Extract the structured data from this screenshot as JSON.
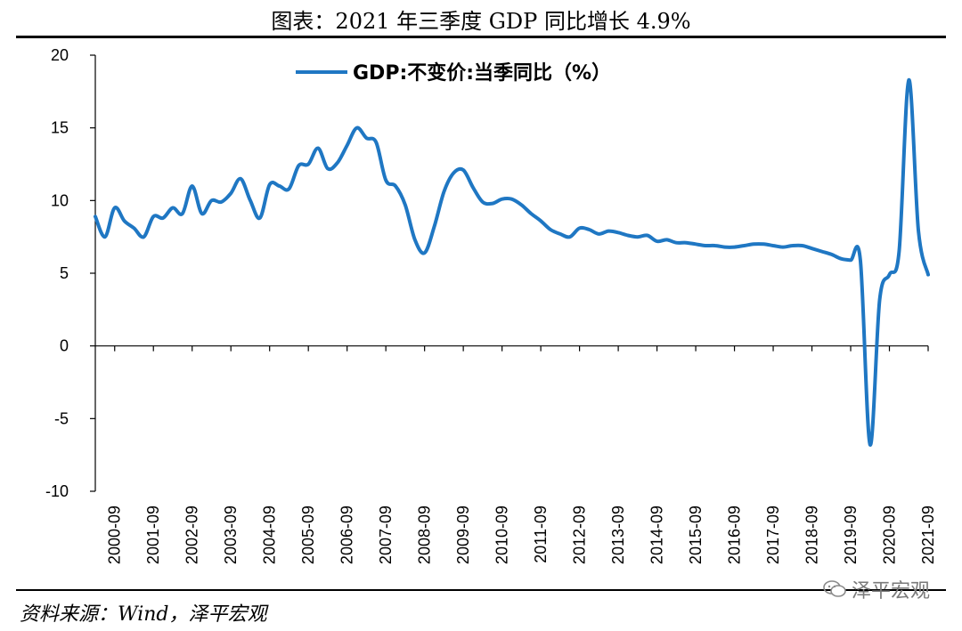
{
  "title": "图表：2021 年三季度 GDP 同比增长 4.9%",
  "source": "资料来源：Wind，泽平宏观",
  "watermark": "泽平宏观",
  "colors": {
    "series": "#1f77c3",
    "axis": "#000000",
    "text": "#000000"
  },
  "chart_data": {
    "type": "line",
    "title": "图表：2021 年三季度 GDP 同比增长 4.9%",
    "xlabel": "",
    "ylabel": "",
    "ylim": [
      -10,
      20
    ],
    "yticks": [
      20,
      15,
      10,
      5,
      0,
      -5,
      -10
    ],
    "ytick_labels": [
      "20",
      "15",
      "10",
      "5",
      "0",
      "-5",
      "-10"
    ],
    "xtick_labels": [
      "2000-09",
      "2001-09",
      "2002-09",
      "2003-09",
      "2004-09",
      "2005-09",
      "2006-09",
      "2007-09",
      "2008-09",
      "2009-09",
      "2010-09",
      "2011-09",
      "2012-09",
      "2013-09",
      "2014-09",
      "2015-09",
      "2016-09",
      "2017-09",
      "2018-09",
      "2019-09",
      "2020-09",
      "2021-09"
    ],
    "grid": false,
    "legend_position": "top",
    "x": [
      "2000-03",
      "2000-06",
      "2000-09",
      "2000-12",
      "2001-03",
      "2001-06",
      "2001-09",
      "2001-12",
      "2002-03",
      "2002-06",
      "2002-09",
      "2002-12",
      "2003-03",
      "2003-06",
      "2003-09",
      "2003-12",
      "2004-03",
      "2004-06",
      "2004-09",
      "2004-12",
      "2005-03",
      "2005-06",
      "2005-09",
      "2005-12",
      "2006-03",
      "2006-06",
      "2006-09",
      "2006-12",
      "2007-03",
      "2007-06",
      "2007-09",
      "2007-12",
      "2008-03",
      "2008-06",
      "2008-09",
      "2008-12",
      "2009-03",
      "2009-06",
      "2009-09",
      "2009-12",
      "2010-03",
      "2010-06",
      "2010-09",
      "2010-12",
      "2011-03",
      "2011-06",
      "2011-09",
      "2011-12",
      "2012-03",
      "2012-06",
      "2012-09",
      "2012-12",
      "2013-03",
      "2013-06",
      "2013-09",
      "2013-12",
      "2014-03",
      "2014-06",
      "2014-09",
      "2014-12",
      "2015-03",
      "2015-06",
      "2015-09",
      "2015-12",
      "2016-03",
      "2016-06",
      "2016-09",
      "2016-12",
      "2017-03",
      "2017-06",
      "2017-09",
      "2017-12",
      "2018-03",
      "2018-06",
      "2018-09",
      "2018-12",
      "2019-03",
      "2019-06",
      "2019-09",
      "2019-12",
      "2020-03",
      "2020-06",
      "2020-09",
      "2020-12",
      "2021-03",
      "2021-06",
      "2021-09"
    ],
    "series": [
      {
        "name": "GDP:不变价:当季同比（%）",
        "color": "#1f77c3",
        "values": [
          8.9,
          7.5,
          9.5,
          8.6,
          8.1,
          7.5,
          8.9,
          8.8,
          9.5,
          9.1,
          11.0,
          9.1,
          10.0,
          9.9,
          10.5,
          11.5,
          10.0,
          8.8,
          11.1,
          11.0,
          10.8,
          12.4,
          12.5,
          13.6,
          12.2,
          12.6,
          13.8,
          15.0,
          14.3,
          14.0,
          11.4,
          11.0,
          9.7,
          7.3,
          6.4,
          8.2,
          10.6,
          11.9,
          12.1,
          10.9,
          9.9,
          9.8,
          10.1,
          10.1,
          9.7,
          9.1,
          8.6,
          8.0,
          7.7,
          7.5,
          8.1,
          8.0,
          7.7,
          7.9,
          7.8,
          7.6,
          7.5,
          7.6,
          7.2,
          7.3,
          7.1,
          7.1,
          7.0,
          6.9,
          6.9,
          6.8,
          6.8,
          6.9,
          7.0,
          7.0,
          6.9,
          6.8,
          6.9,
          6.9,
          6.7,
          6.5,
          6.3,
          6.0,
          5.9,
          5.9,
          -6.8,
          3.2,
          4.9,
          6.5,
          18.3,
          7.9,
          4.9
        ]
      }
    ]
  }
}
